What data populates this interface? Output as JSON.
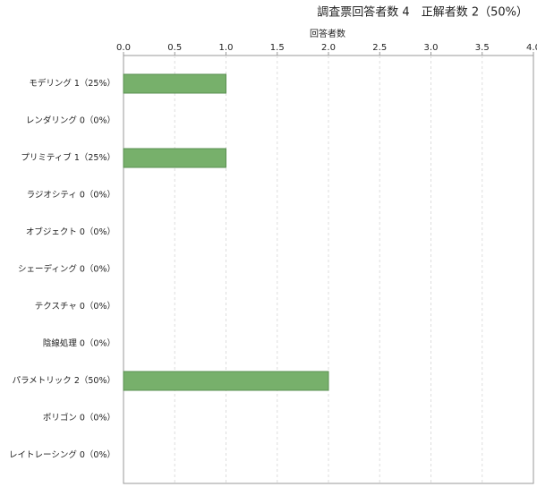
{
  "chart_data": {
    "type": "bar",
    "orientation": "horizontal",
    "title": "調査票回答者数 4　正解者数 2（50%）",
    "x_label": "回答者数",
    "categories": [
      "モデリング 1（25%）",
      "レンダリング 0（0%）",
      "プリミティブ 1（25%）",
      "ラジオシティ 0（0%）",
      "オブジェクト 0（0%）",
      "シェーディング 0（0%）",
      "テクスチャ 0（0%）",
      "陰線処理 0（0%）",
      "パラメトリック 2（50%）",
      "ポリゴン 0（0%）",
      "レイトレーシング 0（0%）"
    ],
    "values": [
      1,
      0,
      1,
      0,
      0,
      0,
      0,
      0,
      2,
      0,
      0
    ],
    "color": "#77b06b",
    "xlim": [
      0,
      4
    ],
    "xticks": [
      {
        "value": 0,
        "label": "0.0"
      },
      0.5,
      {
        "value": 1,
        "label": "1.0"
      },
      1.5,
      {
        "value": 2,
        "label": "2.0"
      },
      2.5,
      {
        "value": 3,
        "label": "3.0"
      },
      3.5,
      {
        "value": 4,
        "label": "4.0"
      }
    ],
    "grid": true
  }
}
